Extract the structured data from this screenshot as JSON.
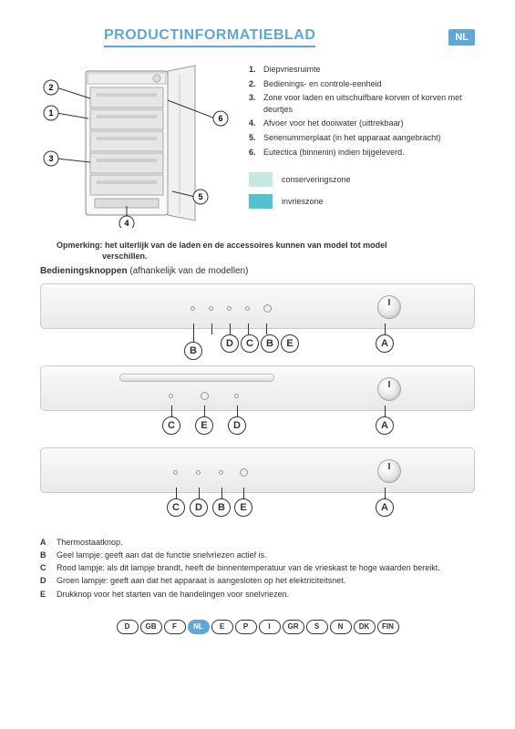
{
  "header": {
    "title": "PRODUCTINFORMATIEBLAD",
    "language_code": "NL"
  },
  "diagram_callouts": {
    "1": "1",
    "2": "2",
    "3": "3",
    "4": "4",
    "5": "5",
    "6": "6"
  },
  "parts": [
    {
      "n": "1.",
      "text": "Diepvriesruimte"
    },
    {
      "n": "2.",
      "text": "Bedienings- en controle-eenheid"
    },
    {
      "n": "3.",
      "text": "Zone voor laden en uitschuifbare korven of korven met deurtjes"
    },
    {
      "n": "4.",
      "text": "Afvoer voor het dooiwater (uittrekbaar)"
    },
    {
      "n": "5.",
      "text": "Serienummerplaat (in het apparaat aangebracht)"
    },
    {
      "n": "6.",
      "text": "Eutectica (binnenin) indien bijgeleverd."
    }
  ],
  "zones": {
    "conservation": {
      "label": "conserveringszone",
      "color": "#c5e8e0"
    },
    "freeze": {
      "label": "invrieszone",
      "color": "#4fc4d0"
    }
  },
  "note": {
    "lead": "Opmerking:",
    "line1": "het uiterlijk van de laden en de accessoires kunnen van model tot model",
    "line2": "verschillen."
  },
  "controls_header": {
    "bold": "Bedieningsknoppen",
    "rest": " (afhankelijk van de modellen)"
  },
  "panel_letters": {
    "A": "A",
    "B": "B",
    "C": "C",
    "D": "D",
    "E": "E"
  },
  "definitions": [
    {
      "l": "A",
      "t": "Thermostaatknop."
    },
    {
      "l": "B",
      "t": "Geel lampje: geeft aan dat de functie snelvriezen actief is."
    },
    {
      "l": "C",
      "t": "Rood lampje: als dit lampje brandt, heeft de binnentemperatuur van de vrieskast te hoge waarden bereikt."
    },
    {
      "l": "D",
      "t": "Groen lampje: geeft aan dat het apparaat is aangesloten op het elektriciteitsnet."
    },
    {
      "l": "E",
      "t": "Drukknop voor het starten van de handelingen voor snelvriezen."
    }
  ],
  "footer_langs": [
    "D",
    "GB",
    "F",
    "NL",
    "E",
    "P",
    "I",
    "GR",
    "S",
    "N",
    "DK",
    "FIN"
  ],
  "footer_active": "NL",
  "colors": {
    "accent": "#5ea8d8",
    "panel_bg": "#e9e9e9",
    "text": "#333333"
  }
}
